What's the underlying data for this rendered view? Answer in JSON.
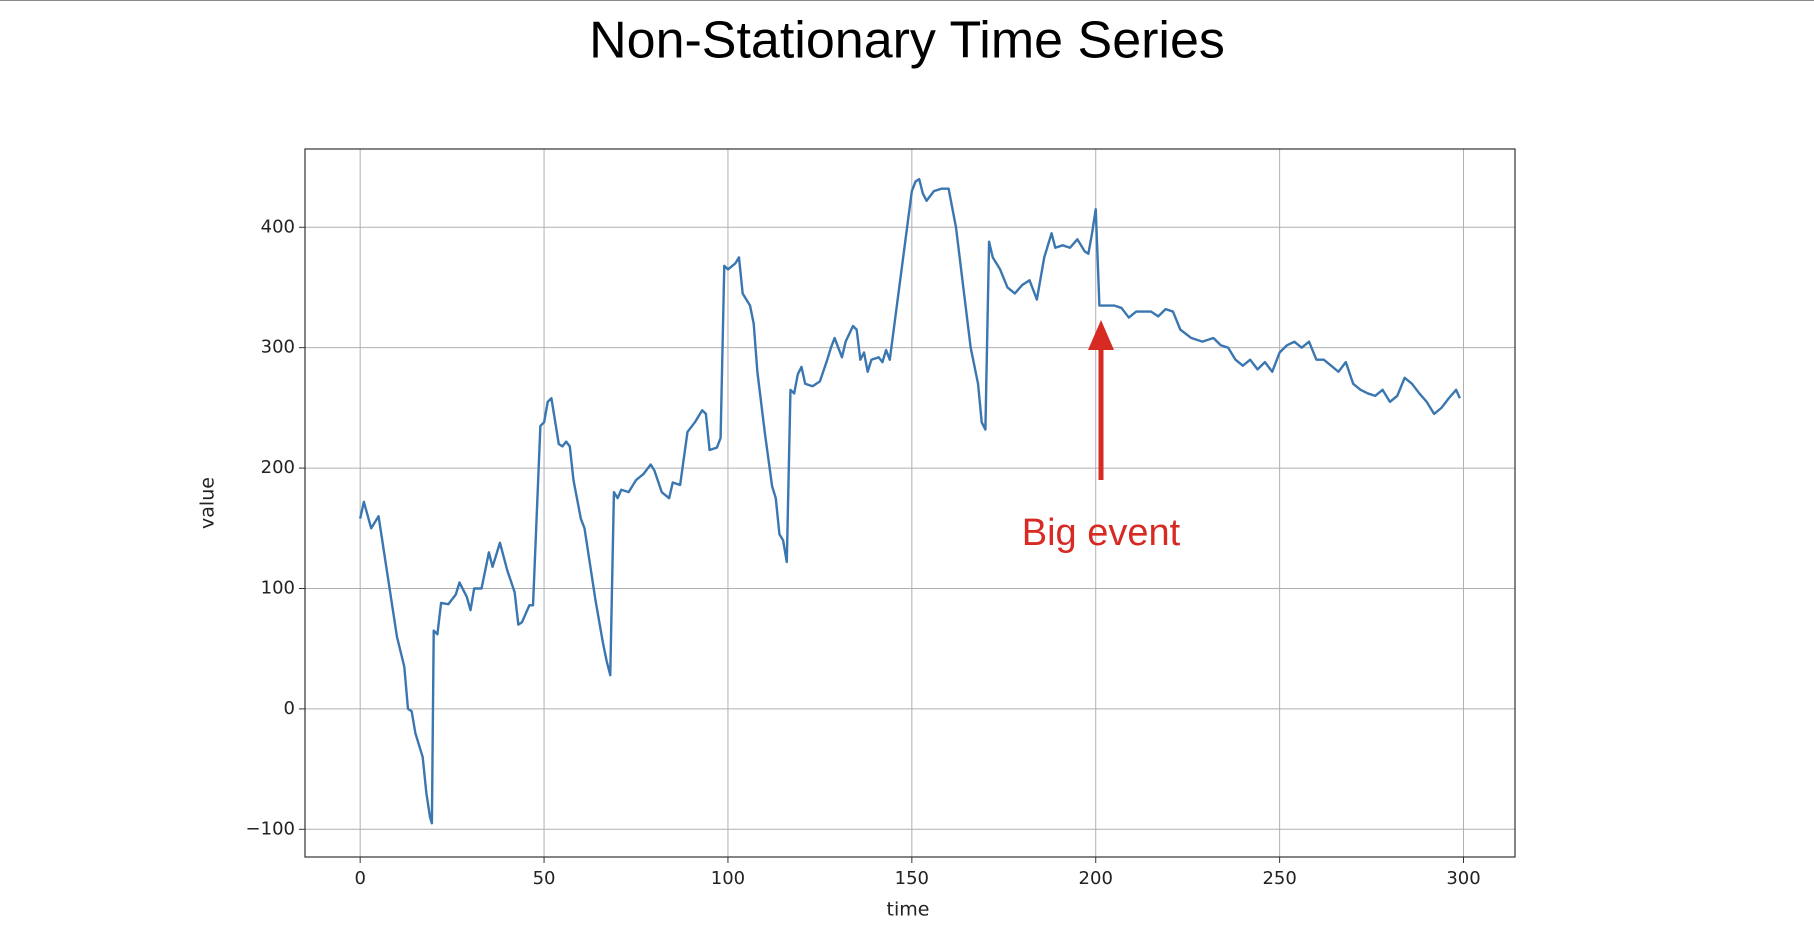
{
  "chart_data": {
    "type": "line",
    "title": "Non-Stationary Time Series",
    "x_label": "time",
    "y_label": "value",
    "annotation": "Big event",
    "xlim": [
      -15,
      314
    ],
    "ylim": [
      -123,
      465
    ],
    "xticks": [
      0,
      50,
      100,
      150,
      200,
      250,
      300
    ],
    "yticks": [
      {
        "value": -100,
        "label": "−100"
      },
      0,
      100,
      200,
      300,
      400
    ],
    "grid": true,
    "series": [
      {
        "name": "value",
        "color": "#3a76af",
        "x": [
          0,
          1,
          3,
          5,
          7,
          10,
          12,
          13,
          14,
          15,
          17,
          18,
          19,
          19.5,
          20,
          21,
          22,
          24,
          26,
          27,
          29,
          30,
          31,
          33,
          35,
          36,
          38,
          40,
          42,
          43,
          44,
          46,
          47,
          49,
          50,
          51,
          52,
          54,
          55,
          56,
          57,
          58,
          60,
          61,
          62,
          64,
          66,
          67,
          68,
          69,
          70,
          71,
          73,
          75,
          77,
          79,
          80,
          82,
          84,
          85,
          87,
          89,
          91,
          93,
          94,
          95,
          97,
          98,
          99,
          100,
          102,
          103,
          104,
          106,
          107,
          108,
          110,
          112,
          113,
          114,
          115,
          116,
          117,
          118,
          119,
          120,
          121,
          123,
          125,
          127,
          128,
          129,
          131,
          132,
          134,
          135,
          136,
          137,
          138,
          139,
          141,
          142,
          143,
          144,
          150,
          151,
          152,
          153,
          154,
          156,
          158,
          160,
          162,
          164,
          166,
          168,
          169,
          170,
          171,
          172,
          174,
          176,
          178,
          180,
          182,
          184,
          186,
          188,
          189,
          191,
          193,
          195,
          197,
          198,
          199,
          200,
          201,
          205,
          207,
          209,
          211,
          215,
          217,
          219,
          221,
          223,
          226,
          229,
          232,
          234,
          236,
          238,
          240,
          242,
          244,
          246,
          248,
          250,
          252,
          254,
          256,
          258,
          260,
          262,
          264,
          266,
          268,
          270,
          272,
          274,
          276,
          278,
          280,
          282,
          284,
          286,
          288,
          290,
          292,
          294,
          296,
          298,
          299
        ],
        "values": [
          158,
          172,
          150,
          160,
          120,
          60,
          35,
          0,
          -2,
          -20,
          -40,
          -70,
          -90,
          -95,
          65,
          62,
          88,
          87,
          95,
          105,
          93,
          82,
          100,
          100,
          130,
          118,
          138,
          115,
          97,
          70,
          72,
          86,
          86,
          235,
          238,
          255,
          258,
          220,
          218,
          222,
          218,
          190,
          158,
          150,
          130,
          90,
          55,
          40,
          28,
          180,
          175,
          182,
          180,
          190,
          195,
          203,
          198,
          180,
          175,
          188,
          186,
          230,
          238,
          248,
          245,
          215,
          217,
          225,
          368,
          365,
          370,
          375,
          345,
          335,
          320,
          280,
          230,
          185,
          175,
          145,
          140,
          122,
          265,
          262,
          278,
          284,
          270,
          268,
          272,
          290,
          300,
          308,
          292,
          305,
          318,
          315,
          290,
          296,
          280,
          290,
          292,
          288,
          298,
          290,
          430,
          438,
          440,
          428,
          422,
          430,
          432,
          432,
          400,
          350,
          300,
          270,
          238,
          232,
          388,
          375,
          365,
          350,
          345,
          352,
          356,
          340,
          375,
          395,
          383,
          385,
          383,
          390,
          380,
          378,
          395,
          415,
          335,
          335,
          333,
          325,
          330,
          330,
          326,
          332,
          330,
          315,
          308,
          305,
          308,
          302,
          300,
          290,
          285,
          290,
          282,
          288,
          280,
          296,
          302,
          305,
          300,
          305,
          290,
          290,
          285,
          280,
          288,
          270,
          265,
          262,
          260,
          265,
          255,
          260,
          275,
          270,
          262,
          255,
          245,
          250,
          258,
          265,
          258
        ]
      }
    ]
  }
}
